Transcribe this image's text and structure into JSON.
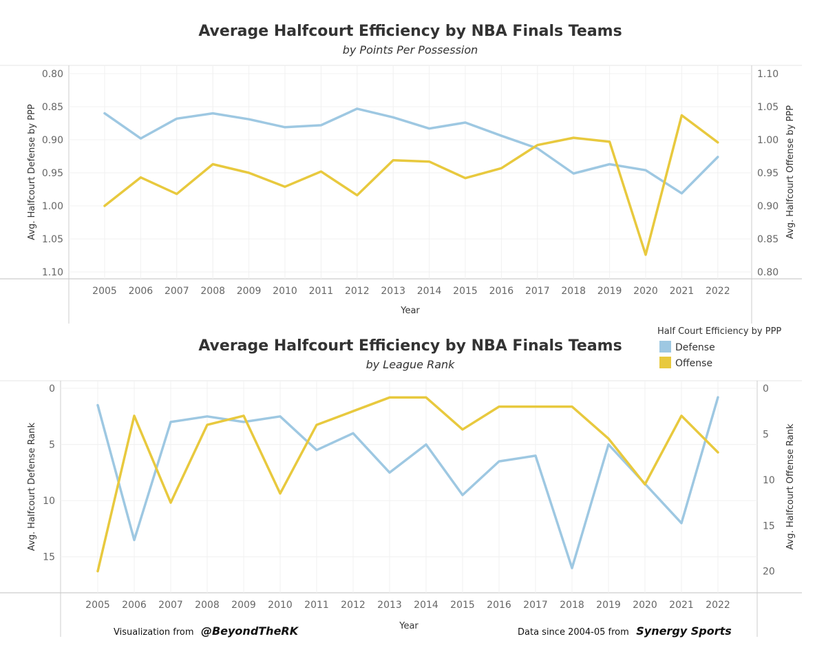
{
  "colors": {
    "defense": "#9ec8e2",
    "offense": "#e8c93e"
  },
  "legend": {
    "title": "Half Court Efficiency by PPP",
    "items": [
      {
        "label": "Defense",
        "color": "#9ec8e2"
      },
      {
        "label": "Offense",
        "color": "#e8c93e"
      }
    ]
  },
  "footer": {
    "viz_prefix": "Visualization from",
    "viz_handle": "@BeyondTheRK",
    "data_prefix": "Data since 2004-05 from",
    "data_source": "Synergy Sports"
  },
  "chart_data": [
    {
      "type": "line",
      "title": "Average Halfcourt Efficiency by NBA Finals Teams",
      "subtitle": "by Points Per Possession",
      "xlabel": "Year",
      "categories": [
        "2005",
        "2006",
        "2007",
        "2008",
        "2009",
        "2010",
        "2011",
        "2012",
        "2013",
        "2014",
        "2015",
        "2016",
        "2017",
        "2018",
        "2019",
        "2020",
        "2021",
        "2022"
      ],
      "left_axis": {
        "label": "Avg. Halfcourt Defense by PPP",
        "reversed": true,
        "range": [
          0.8,
          1.1
        ],
        "ticks": [
          "0.80",
          "0.85",
          "0.90",
          "0.95",
          "1.00",
          "1.05",
          "1.10"
        ]
      },
      "right_axis": {
        "label": "Avg. Halfcourt Offense by PPP",
        "range": [
          0.8,
          1.1
        ],
        "ticks": [
          "1.10",
          "1.05",
          "1.00",
          "0.95",
          "0.90",
          "0.85",
          "0.80"
        ]
      },
      "series": [
        {
          "name": "Defense",
          "axis": "left",
          "values": [
            0.86,
            0.898,
            0.868,
            0.86,
            0.869,
            0.881,
            0.878,
            0.853,
            0.866,
            0.883,
            0.874,
            0.894,
            0.913,
            0.951,
            0.937,
            0.946,
            0.981,
            0.926
          ]
        },
        {
          "name": "Offense",
          "axis": "right",
          "values": [
            0.9,
            0.943,
            0.918,
            0.963,
            0.95,
            0.929,
            0.952,
            0.916,
            0.969,
            0.967,
            0.942,
            0.957,
            0.992,
            1.003,
            0.997,
            0.826,
            1.037,
            0.996
          ]
        }
      ],
      "grid": true
    },
    {
      "type": "line",
      "title": "Average Halfcourt Efficiency by NBA Finals Teams",
      "subtitle": "by League Rank",
      "xlabel": "Year",
      "categories": [
        "2005",
        "2006",
        "2007",
        "2008",
        "2009",
        "2010",
        "2011",
        "2012",
        "2013",
        "2014",
        "2015",
        "2016",
        "2017",
        "2018",
        "2019",
        "2020",
        "2021",
        "2022"
      ],
      "left_axis": {
        "label": "Avg. Halfcourt Defense Rank",
        "reversed": true,
        "range": [
          0,
          17.1
        ],
        "ticks": [
          "0",
          "5",
          "10",
          "15"
        ]
      },
      "right_axis": {
        "label": "Avg. Halfcourt Offense Rank",
        "reversed": true,
        "range": [
          0,
          21
        ],
        "ticks": [
          "0",
          "5",
          "10",
          "15",
          "20"
        ]
      },
      "series": [
        {
          "name": "Defense",
          "axis": "left",
          "values": [
            1.5,
            13.5,
            3.0,
            2.5,
            3.0,
            2.5,
            5.5,
            4.0,
            7.5,
            5.0,
            9.5,
            6.5,
            6.0,
            16.0,
            5.0,
            8.5,
            12.0,
            0.8
          ]
        },
        {
          "name": "Offense",
          "axis": "right",
          "values": [
            20.0,
            3.0,
            12.5,
            4.0,
            3.0,
            11.5,
            4.0,
            2.5,
            1.0,
            1.0,
            4.5,
            2.0,
            2.0,
            2.0,
            5.5,
            10.5,
            3.0,
            7.0
          ]
        }
      ],
      "grid": true
    }
  ]
}
